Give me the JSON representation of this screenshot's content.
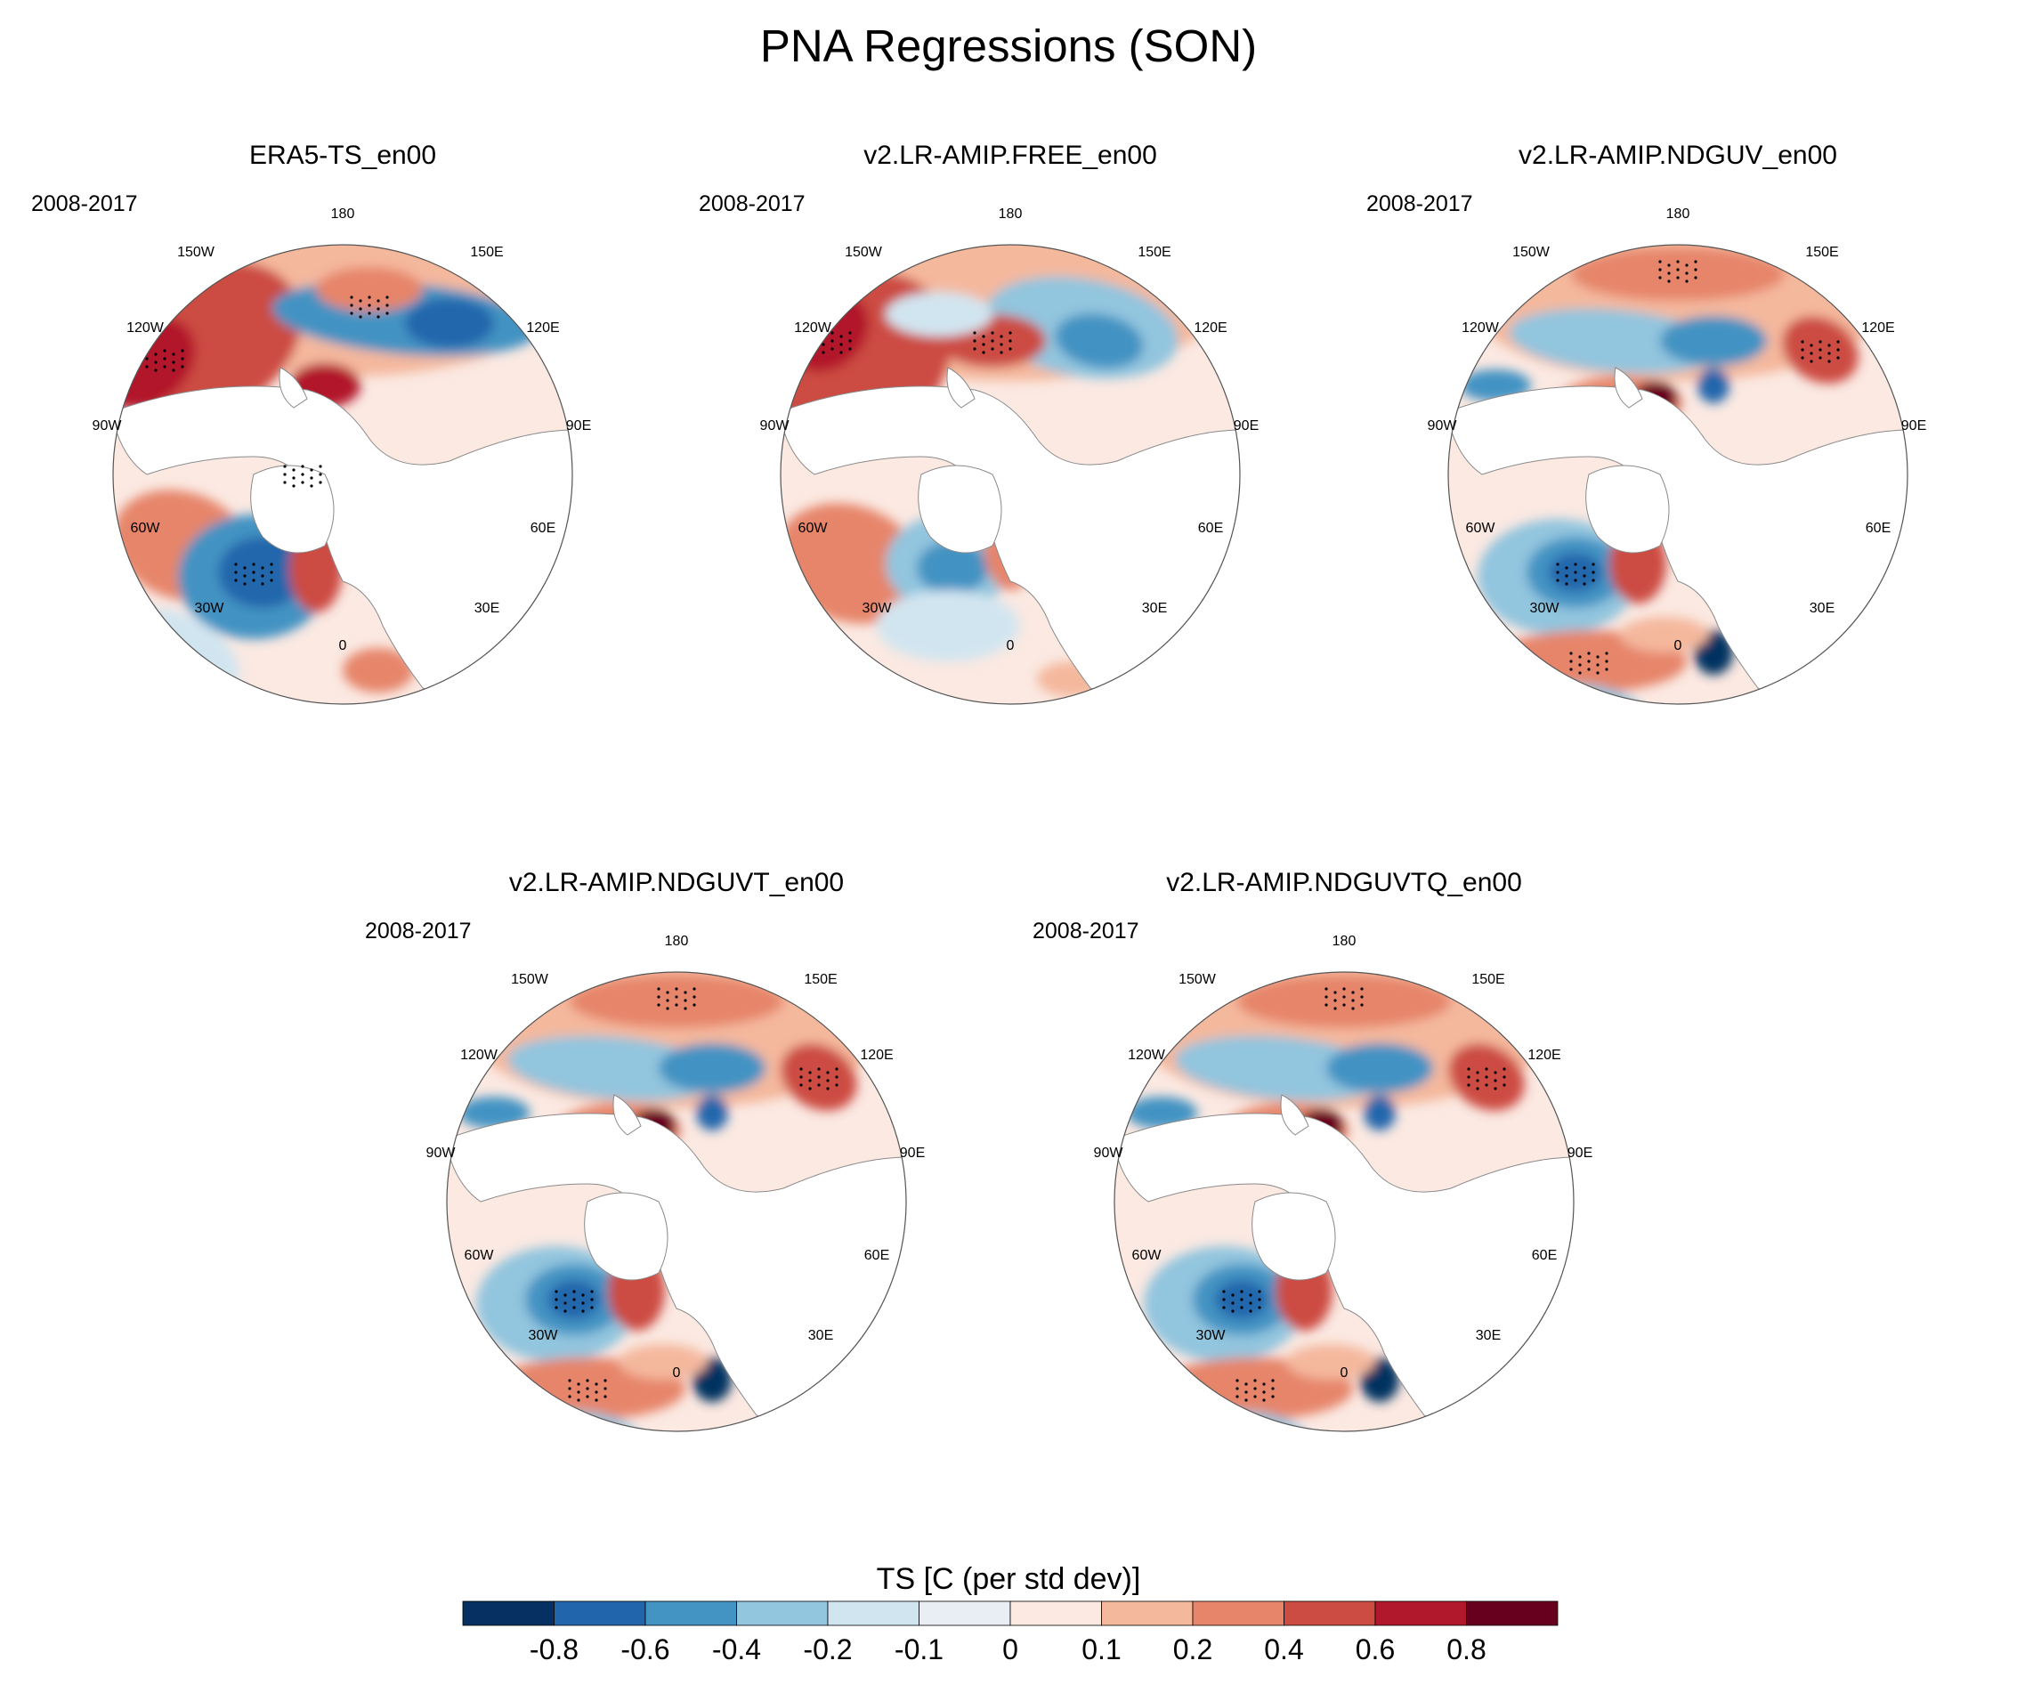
{
  "figure": {
    "title": "PNA Regressions (SON)"
  },
  "panels": [
    {
      "title": "ERA5-TS_en00",
      "period": "2008-2017"
    },
    {
      "title": "v2.LR-AMIP.FREE_en00",
      "period": "2008-2017"
    },
    {
      "title": "v2.LR-AMIP.NDGUV_en00",
      "period": "2008-2017"
    },
    {
      "title": "v2.LR-AMIP.NDGUVT_en00",
      "period": "2008-2017"
    },
    {
      "title": "v2.LR-AMIP.NDGUVTQ_en00",
      "period": "2008-2017"
    }
  ],
  "longitude_labels": [
    "180",
    "150E",
    "120E",
    "90E",
    "60E",
    "30E",
    "0",
    "30W",
    "60W",
    "90W",
    "120W",
    "150W"
  ],
  "colorbar": {
    "title": "TS [C (per std dev)]",
    "colors": [
      "#053061",
      "#2166ac",
      "#4393c3",
      "#92c5de",
      "#d1e5f0",
      "#e8eef4",
      "#fbe9e2",
      "#f4b89d",
      "#e6856a",
      "#cc4c43",
      "#b2182b",
      "#67001f"
    ],
    "ticks": [
      "-0.8",
      "-0.6",
      "-0.4",
      "-0.2",
      "-0.1",
      "0",
      "0.1",
      "0.2",
      "0.4",
      "0.6",
      "0.8"
    ]
  }
}
